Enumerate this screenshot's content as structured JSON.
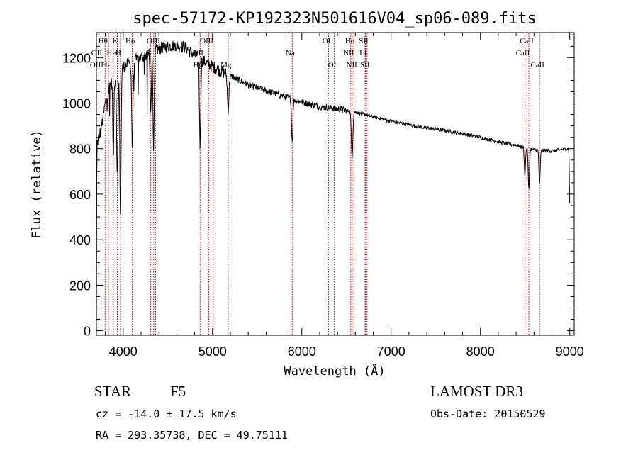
{
  "chart_data": {
    "type": "line",
    "title": "spec-57172-KP192323N501616V04_sp06-089.fits",
    "xlabel": "Wavelength (Å)",
    "ylabel": "Flux (relative)",
    "xlim": [
      3700,
      9050
    ],
    "ylim": [
      -20,
      1310
    ],
    "xticks": [
      4000,
      5000,
      6000,
      7000,
      8000,
      9000
    ],
    "yticks": [
      0,
      200,
      400,
      600,
      800,
      1000,
      1200
    ],
    "xtick_labels": [
      "4000",
      "5000",
      "6000",
      "7000",
      "8000",
      "9000"
    ],
    "ytick_labels": [
      "0",
      "200",
      "400",
      "600",
      "800",
      "1000",
      "1200"
    ],
    "series": [
      {
        "name": "spectrum",
        "continuum": [
          [
            3700,
            0
          ],
          [
            3705,
            820
          ],
          [
            3750,
            880
          ],
          [
            3800,
            1000
          ],
          [
            3850,
            1080
          ],
          [
            3900,
            1100
          ],
          [
            3950,
            1130
          ],
          [
            4000,
            1160
          ],
          [
            4100,
            1180
          ],
          [
            4200,
            1200
          ],
          [
            4300,
            1220
          ],
          [
            4400,
            1240
          ],
          [
            4500,
            1250
          ],
          [
            4600,
            1255
          ],
          [
            4700,
            1245
          ],
          [
            4800,
            1210
          ],
          [
            4900,
            1185
          ],
          [
            5000,
            1160
          ],
          [
            5200,
            1120
          ],
          [
            5400,
            1080
          ],
          [
            5600,
            1055
          ],
          [
            5800,
            1030
          ],
          [
            6000,
            1005
          ],
          [
            6200,
            985
          ],
          [
            6400,
            975
          ],
          [
            6600,
            960
          ],
          [
            6800,
            940
          ],
          [
            7000,
            920
          ],
          [
            7200,
            905
          ],
          [
            7400,
            890
          ],
          [
            7600,
            880
          ],
          [
            7800,
            865
          ],
          [
            8000,
            850
          ],
          [
            8200,
            830
          ],
          [
            8400,
            815
          ],
          [
            8600,
            795
          ],
          [
            8800,
            790
          ],
          [
            8990,
            800
          ],
          [
            9000,
            560
          ]
        ],
        "absorption": [
          {
            "name": "H-zeta",
            "wl": 3889,
            "depth": 350,
            "width": 8
          },
          {
            "name": "Ca K",
            "wl": 3934,
            "depth": 450,
            "width": 10
          },
          {
            "name": "Ca H / H-epsilon",
            "wl": 3969,
            "depth": 620,
            "width": 10
          },
          {
            "name": "H-delta",
            "wl": 4102,
            "depth": 380,
            "width": 10
          },
          {
            "name": "G band",
            "wl": 4308,
            "depth": 250,
            "width": 10
          },
          {
            "name": "H-gamma",
            "wl": 4341,
            "depth": 420,
            "width": 10
          },
          {
            "name": "H-beta",
            "wl": 4861,
            "depth": 380,
            "width": 10
          },
          {
            "name": "Mg",
            "wl": 5175,
            "depth": 150,
            "width": 12
          },
          {
            "name": "Na",
            "wl": 5893,
            "depth": 190,
            "width": 10
          },
          {
            "name": "H-alpha",
            "wl": 6563,
            "depth": 200,
            "width": 12
          },
          {
            "name": "CaII",
            "wl": 8498,
            "depth": 120,
            "width": 10
          },
          {
            "name": "CaII",
            "wl": 8542,
            "depth": 180,
            "width": 10
          },
          {
            "name": "CaII",
            "wl": 8662,
            "depth": 150,
            "width": 10
          }
        ]
      }
    ],
    "line_markers": [
      {
        "label": "Hθ",
        "wl": 3798,
        "row": 0
      },
      {
        "label": "K",
        "wl": 3934,
        "row": 0
      },
      {
        "label": "Hδ",
        "wl": 4102,
        "row": 0
      },
      {
        "label": "OIII",
        "wl": 4363,
        "row": 0
      },
      {
        "label": "OIII",
        "wl": 4959,
        "row": 0
      },
      {
        "label": "OI",
        "wl": 6300,
        "row": 0
      },
      {
        "label": "Hα",
        "wl": 6563,
        "row": 0
      },
      {
        "label": "SII",
        "wl": 6716,
        "row": 0
      },
      {
        "label": "CaII",
        "wl": 8542,
        "row": 0
      },
      {
        "label": "OII",
        "wl": 3727,
        "row": 1
      },
      {
        "label": "He",
        "wl": 3889,
        "row": 1
      },
      {
        "label": "H",
        "wl": 3969,
        "row": 1
      },
      {
        "label": "G",
        "wl": 4308,
        "row": 1
      },
      {
        "label": "OII",
        "wl": 4861,
        "row": 1
      },
      {
        "label": "Na",
        "wl": 5893,
        "row": 1
      },
      {
        "label": "NII",
        "wl": 6548,
        "row": 1
      },
      {
        "label": "Li",
        "wl": 6708,
        "row": 1
      },
      {
        "label": "CaII",
        "wl": 8498,
        "row": 1
      },
      {
        "label": "OIII",
        "wl": 3727,
        "row": 2
      },
      {
        "label": "Hε",
        "wl": 3835,
        "row": 2
      },
      {
        "label": "Hβ",
        "wl": 4861,
        "row": 2
      },
      {
        "label": "Mg",
        "wl": 5175,
        "row": 2
      },
      {
        "label": "OI",
        "wl": 6364,
        "row": 2
      },
      {
        "label": "NII",
        "wl": 6583,
        "row": 2
      },
      {
        "label": "SII",
        "wl": 6731,
        "row": 2
      },
      {
        "label": "CaII",
        "wl": 8662,
        "row": 2
      }
    ],
    "marker_lines": [
      3727,
      3798,
      3835,
      3889,
      3934,
      3969,
      4102,
      4308,
      4341,
      4363,
      4861,
      4959,
      5007,
      5175,
      5893,
      6300,
      6364,
      6548,
      6563,
      6583,
      6708,
      6716,
      6731,
      8498,
      8542,
      8662
    ],
    "marker_color": "#cc0000"
  },
  "info": {
    "class": "STAR",
    "subclass": "F5",
    "survey": "LAMOST DR3",
    "cz": "cz = -14.0 ± 17.5 km/s",
    "obs_date": "Obs-Date: 20150529",
    "coords": "RA = 293.35738, DEC =  49.75111"
  }
}
